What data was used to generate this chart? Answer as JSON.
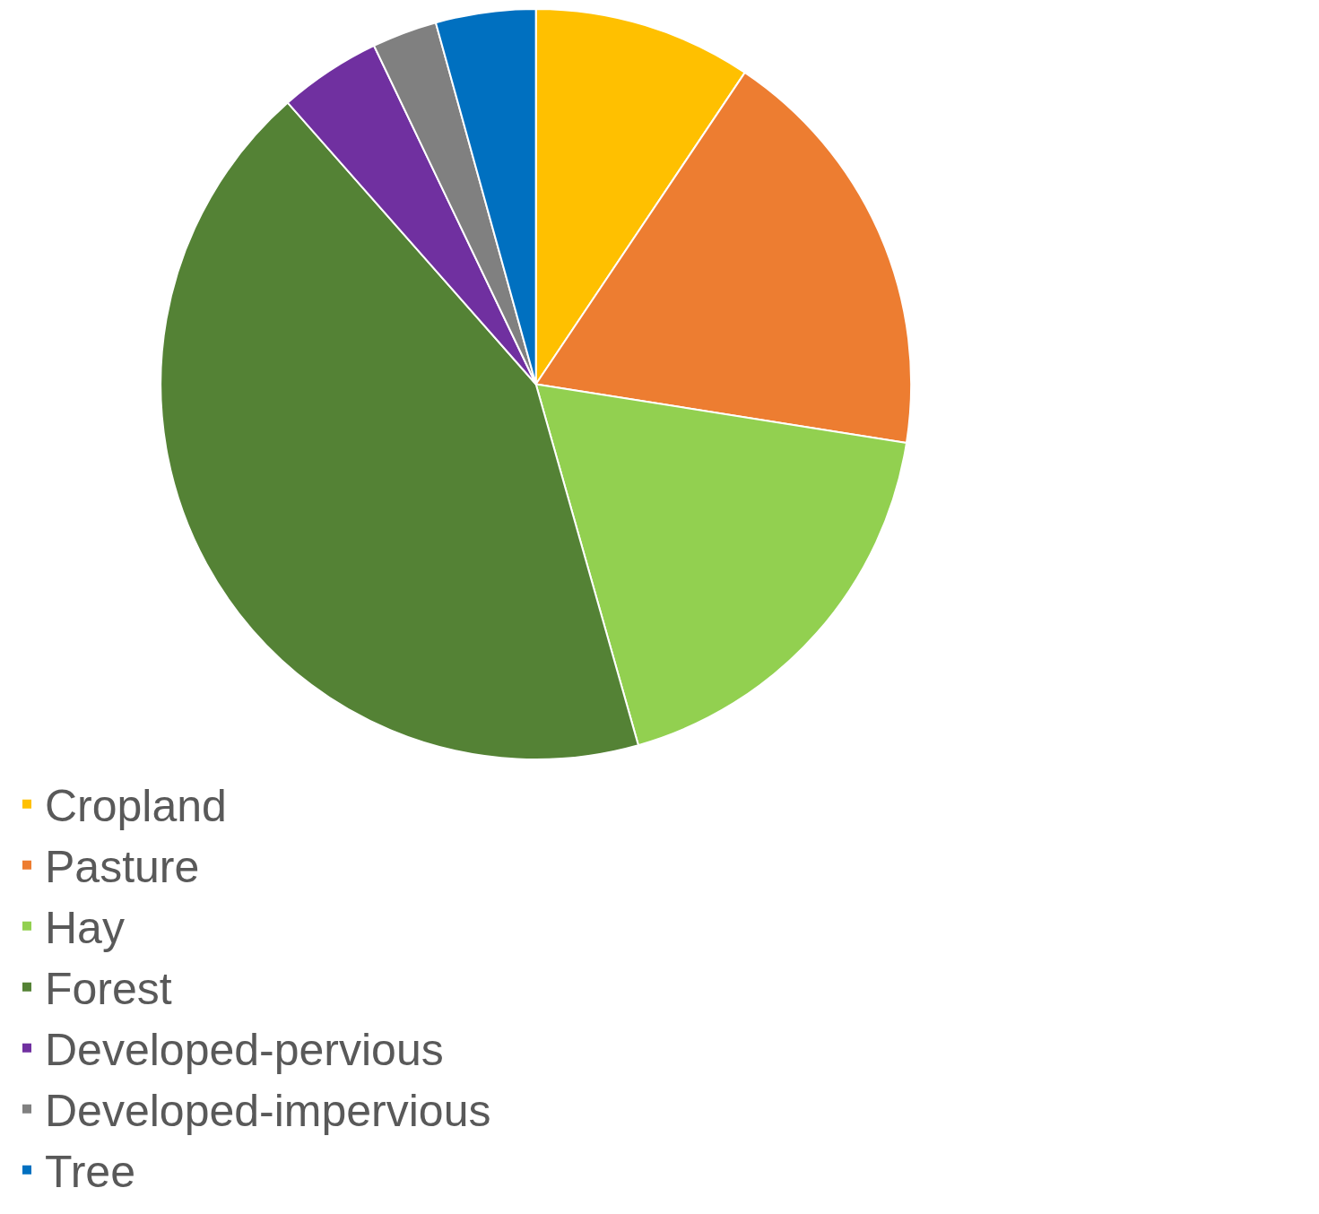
{
  "chart_data": {
    "type": "pie",
    "categories": [
      "Cropland",
      "Pasture",
      "Hay",
      "Forest",
      "Developed-pervious",
      "Developed-impervious",
      "Tree"
    ],
    "values": [
      9.4,
      18.1,
      18.1,
      42.9,
      4.4,
      2.8,
      4.3
    ],
    "colors": [
      "#ffc000",
      "#ed7d31",
      "#92d050",
      "#548235",
      "#7030a0",
      "#808080",
      "#0070c0"
    ],
    "legend": "bottom"
  }
}
